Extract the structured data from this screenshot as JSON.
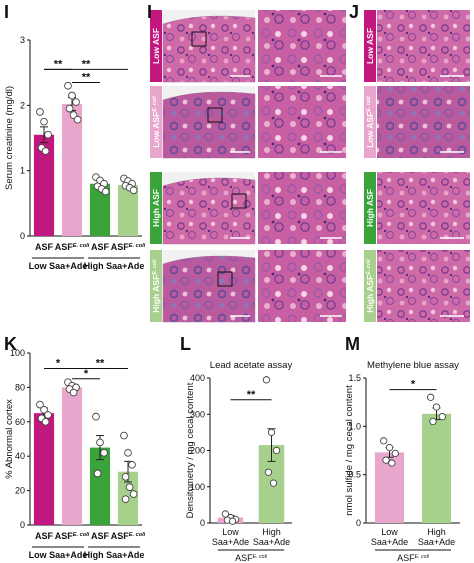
{
  "colors": {
    "low_asf": "#c2177e",
    "low_asf_ecoli": "#e9a6cd",
    "high_asf": "#3aa339",
    "high_asf_ecoli": "#a8d08d",
    "tissue_pink": "#c45a9c",
    "tissue_purple": "#7a4b9e"
  },
  "panels": {
    "H": {
      "letter": "I"
    },
    "I": {
      "letter": "I"
    },
    "J": {
      "letter": "J"
    },
    "K": {
      "letter": "K"
    },
    "L": {
      "letter": "L"
    },
    "M": {
      "letter": "M"
    }
  },
  "panel_I_rows": [
    {
      "label": "Low ASF",
      "sup": "",
      "color": "#c2177e",
      "text_color": "#ffffff"
    },
    {
      "label": "Low ASF",
      "sup": "E. coli",
      "color": "#e9a6cd",
      "text_color": "#ffffff"
    },
    {
      "label": "High ASF",
      "sup": "",
      "color": "#3aa339",
      "text_color": "#ffffff"
    },
    {
      "label": "High ASF",
      "sup": "E. coli",
      "color": "#a8d08d",
      "text_color": "#ffffff"
    }
  ],
  "chart_data": [
    {
      "id": "serum-creatinine",
      "type": "bar",
      "ylabel": "Serum creatinine (mg/dl)",
      "ylim": [
        0,
        3
      ],
      "yticks": [
        0,
        1,
        2,
        3
      ],
      "categories": [
        "ASF",
        "ASF E. coli",
        "ASF",
        "ASF E. coli"
      ],
      "tick_labels": [
        {
          "main": "ASF",
          "sup": ""
        },
        {
          "main": "ASF",
          "sup": "E. coli"
        },
        {
          "main": "ASF",
          "sup": ""
        },
        {
          "main": "ASF",
          "sup": "E. coli"
        }
      ],
      "groups": [
        "Low Saa+Ade",
        "High Saa+Ade"
      ],
      "values": [
        1.55,
        2.02,
        0.8,
        0.78
      ],
      "errors": [
        0.12,
        0.1,
        0.06,
        0.05
      ],
      "colors": [
        "#c2177e",
        "#e9a6cd",
        "#3aa339",
        "#a8d08d"
      ],
      "points": [
        [
          1.9,
          1.75,
          1.55,
          1.35,
          1.3
        ],
        [
          2.3,
          2.15,
          2.05,
          1.95,
          1.85,
          1.78
        ],
        [
          0.9,
          0.85,
          0.8,
          0.76,
          0.72,
          0.68
        ],
        [
          0.88,
          0.84,
          0.8,
          0.77,
          0.74,
          0.7
        ]
      ],
      "significance": [
        {
          "from": 0,
          "to": 1,
          "label": "**",
          "level": 2.55
        },
        {
          "from": 0,
          "to": 3,
          "label": "**",
          "level": 2.55
        },
        {
          "from": 1,
          "to": 2,
          "label": "**",
          "level": 2.35
        }
      ]
    },
    {
      "id": "abnormal-cortex",
      "type": "bar",
      "ylabel": "% Abnormal cortex",
      "ylim": [
        0,
        100
      ],
      "yticks": [
        0,
        20,
        40,
        60,
        80,
        100
      ],
      "categories": [
        "ASF",
        "ASF E. coli",
        "ASF",
        "ASF E. coli"
      ],
      "tick_labels": [
        {
          "main": "ASF",
          "sup": ""
        },
        {
          "main": "ASF",
          "sup": "E. coli"
        },
        {
          "main": "ASF",
          "sup": ""
        },
        {
          "main": "ASF",
          "sup": "E. coli"
        }
      ],
      "groups": [
        "Low Saa+Ade",
        "High Saa+Ade"
      ],
      "values": [
        65,
        80,
        45,
        31
      ],
      "errors": [
        3,
        2,
        7,
        6
      ],
      "colors": [
        "#c2177e",
        "#e9a6cd",
        "#3aa339",
        "#a8d08d"
      ],
      "points": [
        [
          70,
          67,
          64,
          62,
          60
        ],
        [
          83,
          81,
          80,
          79,
          77
        ],
        [
          63,
          48,
          42,
          30
        ],
        [
          52,
          42,
          35,
          28,
          22,
          18,
          15
        ]
      ],
      "significance": [
        {
          "from": 0,
          "to": 1,
          "label": "*",
          "level": 91
        },
        {
          "from": 1,
          "to": 2,
          "label": "*",
          "level": 85
        },
        {
          "from": 1,
          "to": 3,
          "label": "**",
          "level": 91
        }
      ]
    },
    {
      "id": "lead-acetate",
      "type": "bar",
      "title": "Lead acetate assay",
      "ylabel": "Densitometry / mg cecal content",
      "ylim": [
        0,
        400
      ],
      "yticks": [
        0,
        100,
        200,
        300,
        400
      ],
      "categories": [
        "Low Saa+Ade",
        "High Saa+Ade"
      ],
      "tick_labels": [
        {
          "main": "Low",
          "sub": "Saa+Ade"
        },
        {
          "main": "High",
          "sub": "Saa+Ade"
        }
      ],
      "group_label": {
        "main": "ASF",
        "sup": "E. coli"
      },
      "values": [
        15,
        215
      ],
      "errors": [
        6,
        45
      ],
      "colors": [
        "#e9a6cd",
        "#a8d08d"
      ],
      "points": [
        [
          25,
          15,
          10,
          8,
          5
        ],
        [
          395,
          250,
          200,
          140,
          110
        ]
      ],
      "significance": [
        {
          "from": 0,
          "to": 1,
          "label": "**",
          "level": 340
        }
      ]
    },
    {
      "id": "methylene-blue",
      "type": "bar",
      "title": "Methylene blue assay",
      "ylabel": "nmol sulfide / mg cecal content",
      "ylim": [
        0,
        1.5
      ],
      "yticks": [
        0,
        0.5,
        1.0,
        1.5
      ],
      "tick_text": [
        "0",
        "0.5",
        "1.0",
        "1.5"
      ],
      "categories": [
        "Low Saa+Ade",
        "High Saa+Ade"
      ],
      "tick_labels": [
        {
          "main": "Low",
          "sub": "Saa+Ade"
        },
        {
          "main": "High",
          "sub": "Saa+Ade"
        }
      ],
      "group_label": {
        "main": "ASF",
        "sup": "E. coli"
      },
      "values": [
        0.73,
        1.13
      ],
      "errors": [
        0.05,
        0.06
      ],
      "colors": [
        "#e9a6cd",
        "#a8d08d"
      ],
      "points": [
        [
          0.85,
          0.78,
          0.72,
          0.65,
          0.62
        ],
        [
          1.3,
          1.2,
          1.1,
          1.05
        ]
      ],
      "significance": [
        {
          "from": 0,
          "to": 1,
          "label": "*",
          "level": 1.38
        }
      ]
    }
  ]
}
